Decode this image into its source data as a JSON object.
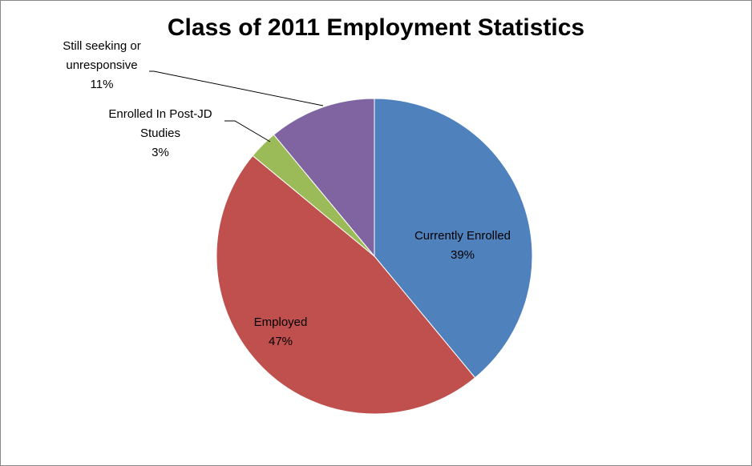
{
  "chart_data": {
    "type": "pie",
    "title": "Class of 2011 Employment Statistics",
    "categories": [
      "Currently Enrolled",
      "Employed",
      "Enrolled In Post-JD Studies",
      "Still seeking or unresponsive"
    ],
    "values": [
      39,
      47,
      3,
      11
    ],
    "value_labels": [
      "39%",
      "47%",
      "3%",
      "11%"
    ],
    "colors": [
      "#4f81bd",
      "#c0504d",
      "#9bbb59",
      "#8064a2"
    ]
  }
}
